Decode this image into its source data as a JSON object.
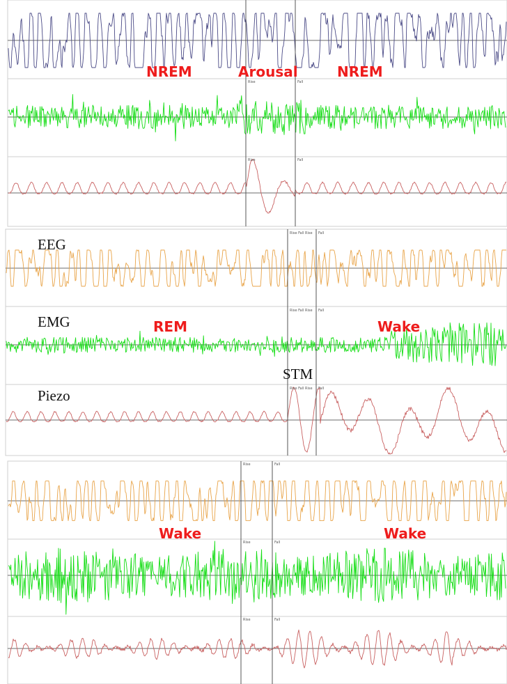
{
  "colors": {
    "eeg_top": "#4a4a86",
    "eeg": "#e8a347",
    "emg": "#11dd11",
    "piezo": "#c86060",
    "stage": "#ee1c1c"
  },
  "panels": [
    {
      "id": "panel-1",
      "stage_labels": [
        "NREM",
        "Arousal",
        "NREM"
      ],
      "channel_labels": [],
      "event_label": "",
      "markers": [
        {
          "label": "Rise"
        },
        {
          "label": "Fall"
        }
      ],
      "traces": [
        {
          "channel": "eeg",
          "color_key": "eeg_top",
          "pattern": "smooth"
        },
        {
          "channel": "emg",
          "color_key": "emg",
          "pattern": "burst"
        },
        {
          "channel": "piezo",
          "color_key": "piezo",
          "pattern": "breath-arousal"
        }
      ]
    },
    {
      "id": "panel-2",
      "stage_labels": [
        "REM",
        "Wake"
      ],
      "channel_labels": [
        "EEG",
        "EMG",
        "Piezo"
      ],
      "event_label": "STM",
      "markers": [
        {
          "label": "Rise Fall Rise"
        },
        {
          "label": "Fall"
        }
      ],
      "traces": [
        {
          "channel": "eeg",
          "color_key": "eeg",
          "pattern": "smooth"
        },
        {
          "channel": "emg",
          "color_key": "emg",
          "pattern": "burst-growing"
        },
        {
          "channel": "piezo",
          "color_key": "piezo",
          "pattern": "breath-wake"
        }
      ]
    },
    {
      "id": "panel-3",
      "stage_labels": [
        "Wake",
        "Wake"
      ],
      "channel_labels": [],
      "event_label": "",
      "markers": [
        {
          "label": "Rise"
        },
        {
          "label": "Fall"
        }
      ],
      "traces": [
        {
          "channel": "eeg",
          "color_key": "eeg",
          "pattern": "smooth"
        },
        {
          "channel": "emg",
          "color_key": "emg",
          "pattern": "burst-strong"
        },
        {
          "channel": "piezo",
          "color_key": "piezo",
          "pattern": "fast"
        }
      ]
    }
  ]
}
